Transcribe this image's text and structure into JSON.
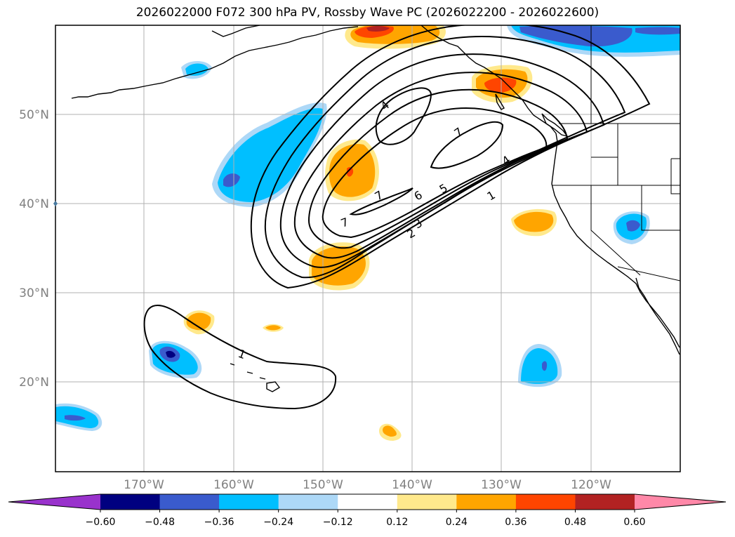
{
  "title": "2026022000 F072 300 hPa PV, Rossby Wave PC (2026022200 - 2026022600)",
  "axes": {
    "lat_labels": [
      "50°N",
      "40°N",
      "30°N",
      "20°N"
    ],
    "lon_labels": [
      "170°W",
      "160°W",
      "150°W",
      "140°W",
      "130°W",
      "120°W"
    ]
  },
  "colorbar": {
    "tick_labels": [
      "−0.60",
      "−0.48",
      "−0.36",
      "−0.24",
      "−0.12",
      "0.12",
      "0.24",
      "0.36",
      "0.48",
      "0.60"
    ],
    "bins": [
      {
        "range": "below -0.60",
        "color": "#9932cc"
      },
      {
        "range": "-0.60 to -0.48",
        "color": "#000080"
      },
      {
        "range": "-0.48 to -0.36",
        "color": "#3a5bcd"
      },
      {
        "range": "-0.36 to -0.24",
        "color": "#00bfff"
      },
      {
        "range": "-0.24 to -0.12",
        "color": "#add8f7"
      },
      {
        "range": "-0.12 to 0.12",
        "color": "#ffffff"
      },
      {
        "range": "0.12 to 0.24",
        "color": "#ffe98c"
      },
      {
        "range": "0.24 to 0.36",
        "color": "#ffa500"
      },
      {
        "range": "0.36 to 0.48",
        "color": "#ff4500"
      },
      {
        "range": "0.48 to 0.60",
        "color": "#b22222"
      },
      {
        "range": "above 0.60",
        "color": "#ff88a8"
      }
    ]
  },
  "pv_contour_labels": [
    "4",
    "7",
    "4",
    "7",
    "6",
    "5",
    "3",
    "2",
    "1",
    "7",
    "1"
  ],
  "colors": {
    "blue_light": "#add8f7",
    "blue": "#00bfff",
    "blue_dark": "#3a5bcd",
    "yellow": "#ffe98c",
    "orange": "#ffa500",
    "red": "#ff4500",
    "darkred": "#b22222",
    "grid": "#b0b0b0",
    "contour": "#000000"
  }
}
